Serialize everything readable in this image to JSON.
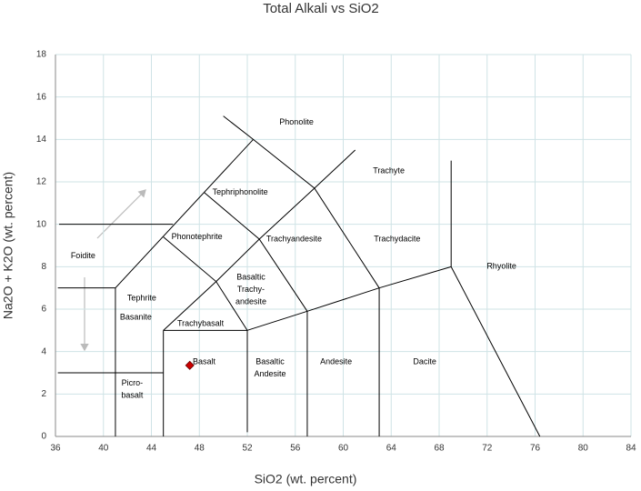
{
  "chart_data": {
    "type": "scatter",
    "title": "Total Alkali vs SiO2",
    "x_label": "SiO2 (wt. percent)",
    "y_label": "Na2O + K2O (wt. percent)",
    "xlim": [
      36,
      84
    ],
    "ylim": [
      0,
      18
    ],
    "xticks": [
      36,
      40,
      44,
      48,
      52,
      56,
      60,
      64,
      68,
      72,
      76,
      80,
      84
    ],
    "yticks": [
      0,
      2,
      4,
      6,
      8,
      10,
      12,
      14,
      16,
      18
    ],
    "grid": true,
    "series": [
      {
        "color": "#cc0000",
        "x": [
          47.2
        ],
        "values": [
          3.35
        ]
      }
    ],
    "boundaries": [
      {
        "x": [
          36.3,
          45.8
        ],
        "y": [
          10,
          10
        ]
      },
      {
        "x": [
          36.2,
          41
        ],
        "y": [
          7,
          7
        ]
      },
      {
        "x": [
          36.2,
          45
        ],
        "y": [
          3,
          3
        ]
      },
      {
        "x": [
          41,
          41
        ],
        "y": [
          0,
          7
        ]
      },
      {
        "x": [
          45,
          45
        ],
        "y": [
          0,
          5
        ]
      },
      {
        "x": [
          45,
          52
        ],
        "y": [
          5,
          5
        ]
      },
      {
        "x": [
          52,
          52
        ],
        "y": [
          0.2,
          5
        ]
      },
      {
        "x": [
          52,
          57,
          63,
          69
        ],
        "y": [
          5,
          5.9,
          7,
          8
        ]
      },
      {
        "x": [
          57,
          57
        ],
        "y": [
          0,
          5.9
        ]
      },
      {
        "x": [
          63,
          63
        ],
        "y": [
          0,
          7
        ]
      },
      {
        "x": [
          69,
          76.4
        ],
        "y": [
          8,
          0
        ]
      },
      {
        "x": [
          69,
          69
        ],
        "y": [
          8,
          13
        ]
      },
      {
        "x": [
          41,
          52.5
        ],
        "y": [
          7,
          14
        ]
      },
      {
        "x": [
          50,
          52.5,
          57.6,
          63
        ],
        "y": [
          15.1,
          14,
          11.7,
          7
        ]
      },
      {
        "x": [
          57.6,
          61
        ],
        "y": [
          11.7,
          13.5
        ]
      },
      {
        "x": [
          45,
          49.4,
          52
        ],
        "y": [
          9.4,
          7.3,
          5
        ]
      },
      {
        "x": [
          48.4,
          53,
          57
        ],
        "y": [
          11.5,
          9.3,
          5.9
        ]
      },
      {
        "x": [
          45,
          49.4,
          53,
          57.6
        ],
        "y": [
          5,
          7.3,
          9.3,
          11.7
        ]
      }
    ],
    "fields": [
      {
        "lines": [
          "Phonolite"
        ],
        "x": 56.1,
        "y": 14.8
      },
      {
        "lines": [
          "Trachyte"
        ],
        "x": 63.8,
        "y": 12.5
      },
      {
        "lines": [
          "Tephriphonolite"
        ],
        "x": 51.4,
        "y": 11.5
      },
      {
        "lines": [
          "Foidite"
        ],
        "x": 38.3,
        "y": 8.5
      },
      {
        "lines": [
          "Phonotephrite"
        ],
        "x": 47.8,
        "y": 9.4
      },
      {
        "lines": [
          "Trachyandesite"
        ],
        "x": 55.9,
        "y": 9.3
      },
      {
        "lines": [
          "Trachydacite"
        ],
        "x": 64.5,
        "y": 9.3
      },
      {
        "lines": [
          "Rhyolite"
        ],
        "x": 73.2,
        "y": 8.0
      },
      {
        "lines": [
          "Tephrite"
        ],
        "x": 43.2,
        "y": 6.5
      },
      {
        "lines": [
          "Basaltic",
          "Trachy-",
          "andesite"
        ],
        "x": 52.3,
        "y": 7.5
      },
      {
        "lines": [
          "Basanite"
        ],
        "x": 42.7,
        "y": 5.6
      },
      {
        "lines": [
          "Trachybasalt"
        ],
        "x": 48.1,
        "y": 5.3
      },
      {
        "lines": [
          "Basalt"
        ],
        "x": 48.4,
        "y": 3.5
      },
      {
        "lines": [
          "Basaltic",
          "Andesite"
        ],
        "x": 53.9,
        "y": 3.5
      },
      {
        "lines": [
          "Andesite"
        ],
        "x": 59.4,
        "y": 3.5
      },
      {
        "lines": [
          "Dacite"
        ],
        "x": 66.8,
        "y": 3.5
      },
      {
        "lines": [
          "Picro-",
          "basalt"
        ],
        "x": 42.4,
        "y": 2.5
      }
    ]
  }
}
